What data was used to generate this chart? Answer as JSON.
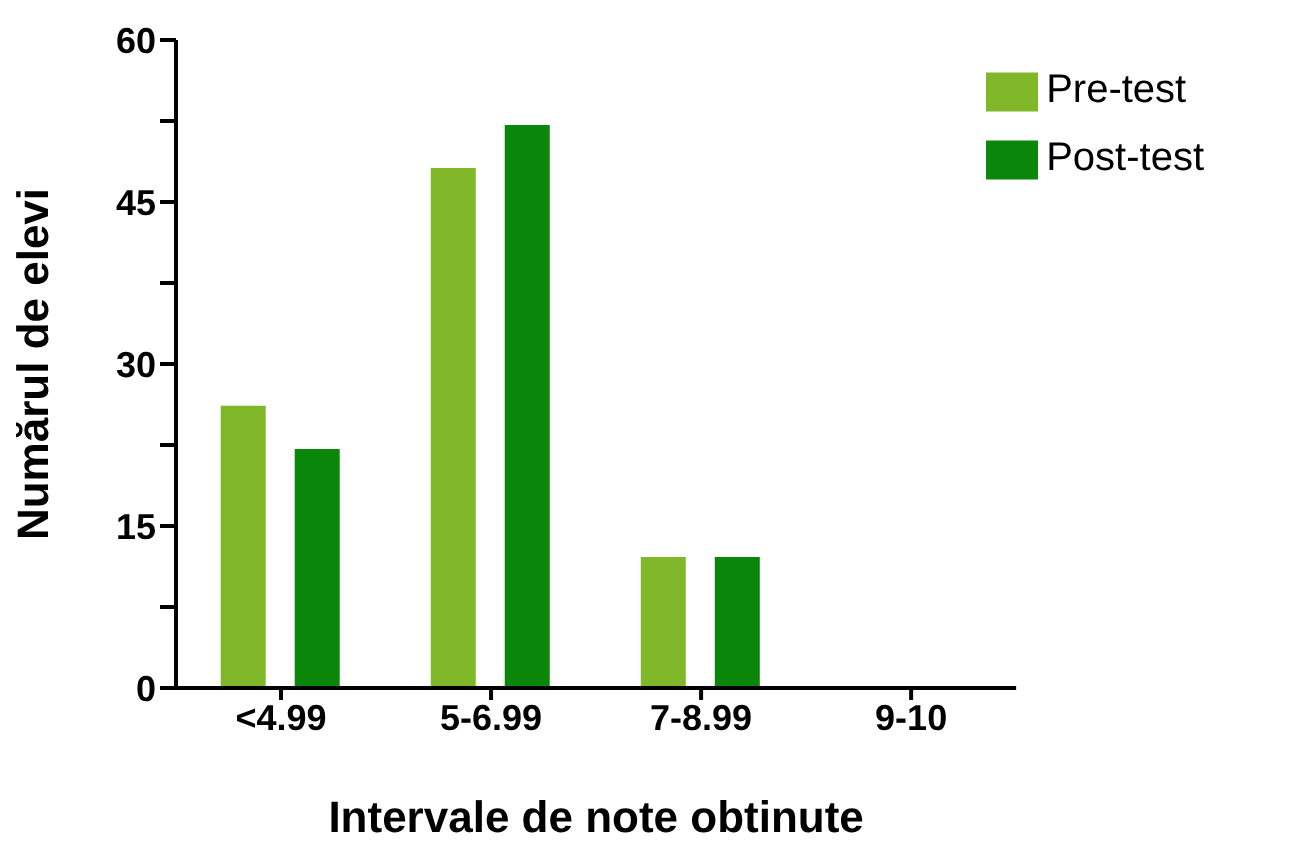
{
  "chart_data": {
    "type": "bar",
    "xlabel": "Intervale de note obtinute",
    "ylabel": "Numărul de elevi",
    "categories": [
      "<4.99",
      "5-6.99",
      "7-8.99",
      "9-10"
    ],
    "series": [
      {
        "name": "Pre-test",
        "color": "#80b82a",
        "values": [
          26,
          48,
          12,
          0
        ]
      },
      {
        "name": "Post-test",
        "color": "#0a870a",
        "values": [
          22,
          52,
          12,
          0
        ]
      }
    ],
    "ylim": [
      0,
      60
    ],
    "yticks": [
      0,
      {
        "value": 7.5,
        "label": null
      },
      15,
      {
        "value": 22.5,
        "label": null
      },
      30,
      {
        "value": 37.5,
        "label": null
      },
      45,
      {
        "value": 52.5,
        "label": null
      },
      60
    ],
    "grid": false,
    "legend": "top right"
  }
}
